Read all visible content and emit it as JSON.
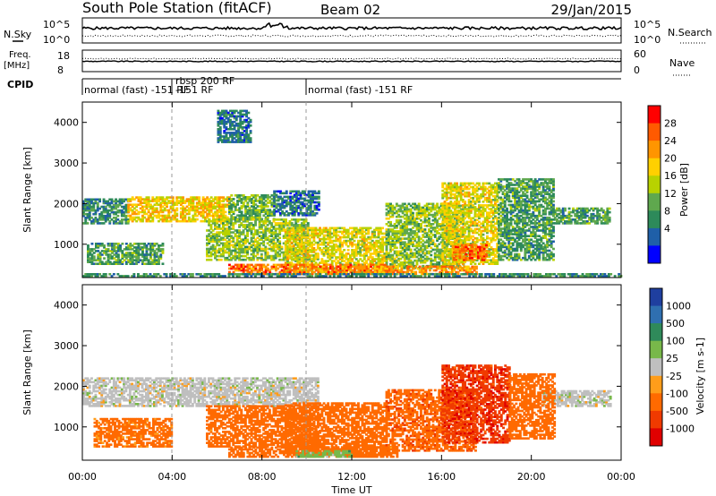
{
  "header": {
    "station": "South Pole Station (fitACF)",
    "beam": "Beam 02",
    "date": "29/Jan/2015"
  },
  "top_panels": {
    "nsky_label": "N.Sky",
    "nsearch_label": "N.Search",
    "nsky_ticks": [
      "10^5",
      "10^0"
    ],
    "freq_label_1": "Freq.",
    "freq_label_2": "[MHz]",
    "freq_ticks": [
      "18",
      "8"
    ],
    "nave_label": "Nave",
    "nave_ticks": [
      "60",
      "0"
    ],
    "cpid_label": "CPID",
    "cpid_segments": [
      {
        "label": "normal (fast) -151 RF",
        "start_hour": 0,
        "end_hour": 4
      },
      {
        "label": "rbsp 200 RF",
        "start_hour": 4,
        "end_hour": 10
      },
      {
        "label": "-151 RF",
        "start_hour": 4,
        "end_hour": 10
      },
      {
        "label": "normal (fast) -151 RF",
        "start_hour": 10,
        "end_hour": 24
      }
    ]
  },
  "chart_data": [
    {
      "type": "heatmap",
      "panel": "power",
      "ylabel": "Slant Range [km]",
      "x_ticks": [
        "00:00",
        "04:00",
        "08:00",
        "12:00",
        "16:00",
        "20:00",
        "00:00"
      ],
      "xlim_hours": [
        0,
        24
      ],
      "ylim_km": [
        180,
        4500
      ],
      "y_ticks": [
        1000,
        2000,
        3000,
        4000
      ],
      "colorbar": {
        "title": "Power [dB]",
        "ticks": [
          "28",
          "24",
          "20",
          "16",
          "12",
          "8",
          "4"
        ],
        "colors": [
          "#ff0000",
          "#ff5a00",
          "#ff9500",
          "#ffd000",
          "#b8d200",
          "#5fa84e",
          "#2d8a5a",
          "#1f5fa8",
          "#0000ff"
        ]
      },
      "regions": [
        {
          "t0": 0.0,
          "t1": 2.0,
          "r0": 1500,
          "r1": 2100,
          "value": 8
        },
        {
          "t0": 2.0,
          "t1": 6.5,
          "r0": 1550,
          "r1": 2150,
          "value": 20
        },
        {
          "t0": 6.5,
          "t1": 8.5,
          "r0": 1600,
          "r1": 2200,
          "value": 12
        },
        {
          "t0": 8.5,
          "t1": 10.5,
          "r0": 1700,
          "r1": 2300,
          "value": 6
        },
        {
          "t0": 21.0,
          "t1": 23.5,
          "r0": 1500,
          "r1": 1900,
          "value": 10
        },
        {
          "t0": 0.2,
          "t1": 3.6,
          "r0": 500,
          "r1": 1000,
          "value": 10
        },
        {
          "t0": 5.5,
          "t1": 10.0,
          "r0": 600,
          "r1": 1600,
          "value": 14
        },
        {
          "t0": 9.0,
          "t1": 13.5,
          "r0": 300,
          "r1": 1400,
          "value": 18
        },
        {
          "t0": 13.5,
          "t1": 17.0,
          "r0": 400,
          "r1": 2000,
          "value": 14
        },
        {
          "t0": 16.0,
          "t1": 18.5,
          "r0": 500,
          "r1": 2500,
          "value": 18
        },
        {
          "t0": 18.5,
          "t1": 21.0,
          "r0": 600,
          "r1": 2600,
          "value": 10
        },
        {
          "t0": 6.5,
          "t1": 13.5,
          "r0": 250,
          "r1": 500,
          "value": 26
        },
        {
          "t0": 13.0,
          "t1": 17.5,
          "r0": 250,
          "r1": 450,
          "value": 24
        },
        {
          "t0": 16.5,
          "t1": 18.0,
          "r0": 600,
          "r1": 1000,
          "value": 28
        },
        {
          "t0": 6.0,
          "t1": 7.5,
          "r0": 3500,
          "r1": 4300,
          "value": 6
        },
        {
          "t0": 0.0,
          "t1": 24.0,
          "r0": 200,
          "r1": 280,
          "value": 8
        }
      ]
    },
    {
      "type": "heatmap",
      "panel": "velocity",
      "ylabel": "Slant Range [km]",
      "xlabel": "Time UT",
      "x_ticks": [
        "00:00",
        "04:00",
        "08:00",
        "12:00",
        "16:00",
        "20:00",
        "00:00"
      ],
      "xlim_hours": [
        0,
        24
      ],
      "ylim_km": [
        180,
        4500
      ],
      "y_ticks": [
        1000,
        2000,
        3000,
        4000
      ],
      "colorbar": {
        "title": "Velocity [m s-1]",
        "ticks": [
          "1000",
          "500",
          "100",
          "25",
          "-25",
          "-100",
          "-500",
          "-1000"
        ],
        "colors": [
          "#1f3f9f",
          "#2f6fb0",
          "#2f8a5a",
          "#78b84a",
          "#bfbfbf",
          "#ff9d1a",
          "#ff6a00",
          "#f03a00",
          "#e00000"
        ]
      },
      "regions": [
        {
          "t0": 0.0,
          "t1": 10.5,
          "r0": 1500,
          "r1": 2200,
          "value": 0
        },
        {
          "t0": 20.5,
          "t1": 23.5,
          "r0": 1500,
          "r1": 1900,
          "value": 0
        },
        {
          "t0": 0.5,
          "t1": 4.0,
          "r0": 500,
          "r1": 1200,
          "value": -150
        },
        {
          "t0": 5.5,
          "t1": 10.5,
          "r0": 500,
          "r1": 1500,
          "value": -200
        },
        {
          "t0": 9.0,
          "t1": 13.5,
          "r0": 300,
          "r1": 1600,
          "value": -300
        },
        {
          "t0": 13.5,
          "t1": 17.5,
          "r0": 400,
          "r1": 1900,
          "value": -400
        },
        {
          "t0": 16.0,
          "t1": 19.0,
          "r0": 600,
          "r1": 2500,
          "value": -800
        },
        {
          "t0": 19.0,
          "t1": 21.0,
          "r0": 700,
          "r1": 2300,
          "value": -300
        },
        {
          "t0": 6.5,
          "t1": 14.0,
          "r0": 250,
          "r1": 500,
          "value": -200
        },
        {
          "t0": 9.5,
          "t1": 12.0,
          "r0": 250,
          "r1": 420,
          "value": 60
        }
      ]
    }
  ]
}
